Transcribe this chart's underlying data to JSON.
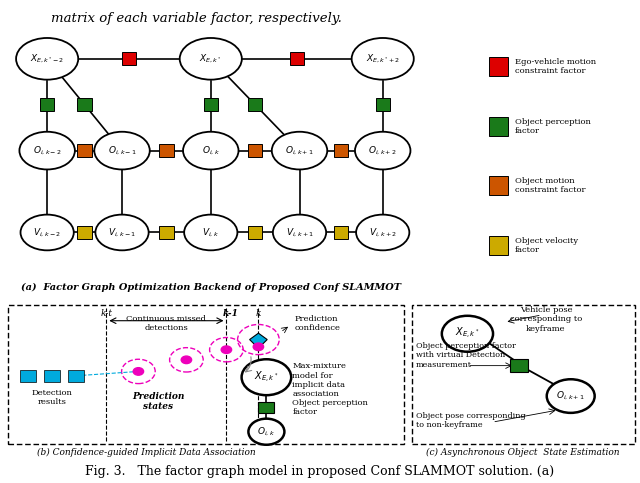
{
  "title_top": "matrix of each variable factor, respectively.",
  "fig_caption": "Fig. 3.   The factor graph model in proposed Conf SLAMMOT solution. (a)",
  "panel_a_title": "(a)  Factor Graph Optimization Backend of Proposed Conf SLAMMOT",
  "panel_b_title": "(b) Confidence-guided Implicit Data Association",
  "panel_c_title": "(c) Asynchronous Object  State Estimation",
  "colors": {
    "red": "#dd0000",
    "green": "#1a7a1a",
    "orange": "#cc5500",
    "yellow": "#ccaa00",
    "cyan": "#00aadd",
    "magenta": "#ee00bb",
    "gray": "#888888"
  },
  "bg_color": "#ffffff"
}
